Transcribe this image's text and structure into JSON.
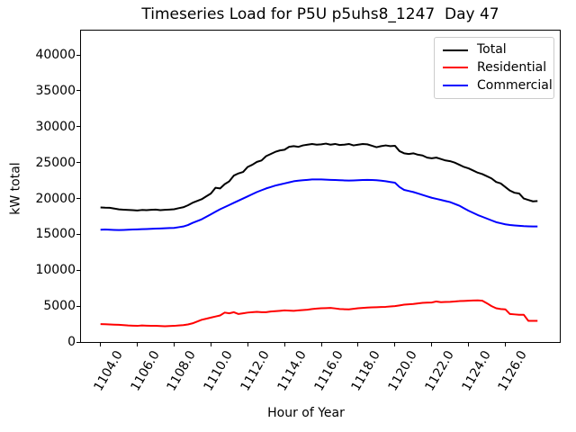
{
  "figure": {
    "title": "Timeseries Load for P5U p5uhs8_1247  Day 47"
  },
  "chart_data": {
    "type": "line",
    "title": "Timeseries Load for P5U p5uhs8_1247  Day 47",
    "xlabel": "Hour of Year",
    "ylabel": "kW total",
    "xlim": [
      1102.94,
      1128.96
    ],
    "ylim": [
      0,
      43400
    ],
    "grid": false,
    "legend_position": "upper right",
    "xticks": [
      1104,
      1106,
      1108,
      1110,
      1112,
      1114,
      1116,
      1118,
      1120,
      1122,
      1124,
      1126
    ],
    "xtick_labels": [
      "1104.0",
      "1106.0",
      "1108.0",
      "1110.0",
      "1112.0",
      "1114.0",
      "1116.0",
      "1118.0",
      "1120.0",
      "1122.0",
      "1124.0",
      "1126.0"
    ],
    "yticks": [
      0,
      5000,
      10000,
      15000,
      20000,
      25000,
      30000,
      35000,
      40000
    ],
    "ytick_labels": [
      "0",
      "5000",
      "10000",
      "15000",
      "20000",
      "25000",
      "30000",
      "35000",
      "40000"
    ],
    "x": [
      1104.0,
      1104.25,
      1104.5,
      1104.75,
      1105.0,
      1105.25,
      1105.5,
      1105.75,
      1106.0,
      1106.25,
      1106.5,
      1106.75,
      1107.0,
      1107.25,
      1107.5,
      1107.75,
      1108.0,
      1108.25,
      1108.5,
      1108.75,
      1109.0,
      1109.25,
      1109.5,
      1109.75,
      1110.0,
      1110.25,
      1110.5,
      1110.75,
      1111.0,
      1111.25,
      1111.5,
      1111.75,
      1112.0,
      1112.25,
      1112.5,
      1112.75,
      1113.0,
      1113.25,
      1113.5,
      1113.75,
      1114.0,
      1114.25,
      1114.5,
      1114.75,
      1115.0,
      1115.25,
      1115.5,
      1115.75,
      1116.0,
      1116.25,
      1116.5,
      1116.75,
      1117.0,
      1117.25,
      1117.5,
      1117.75,
      1118.0,
      1118.25,
      1118.5,
      1118.75,
      1119.0,
      1119.25,
      1119.5,
      1119.75,
      1120.0,
      1120.25,
      1120.5,
      1120.75,
      1121.0,
      1121.25,
      1121.5,
      1121.75,
      1122.0,
      1122.25,
      1122.5,
      1122.75,
      1123.0,
      1123.25,
      1123.5,
      1123.75,
      1124.0,
      1124.25,
      1124.5,
      1124.75,
      1125.0,
      1125.25,
      1125.5,
      1125.75,
      1126.0,
      1126.25,
      1126.5,
      1126.75,
      1127.0,
      1127.25,
      1127.5,
      1127.75
    ],
    "series": [
      {
        "name": "Total",
        "color": "#000000",
        "values": [
          18760,
          18720,
          18700,
          18600,
          18480,
          18440,
          18400,
          18370,
          18330,
          18400,
          18370,
          18420,
          18450,
          18380,
          18430,
          18460,
          18500,
          18650,
          18780,
          19050,
          19400,
          19650,
          19900,
          20300,
          20700,
          21500,
          21400,
          22000,
          22400,
          23200,
          23500,
          23700,
          24400,
          24700,
          25100,
          25300,
          25900,
          26200,
          26500,
          26700,
          26800,
          27200,
          27300,
          27200,
          27400,
          27500,
          27600,
          27500,
          27550,
          27650,
          27500,
          27600,
          27450,
          27500,
          27600,
          27400,
          27500,
          27600,
          27550,
          27350,
          27150,
          27300,
          27400,
          27300,
          27350,
          26600,
          26300,
          26200,
          26300,
          26100,
          26000,
          25700,
          25600,
          25700,
          25500,
          25300,
          25200,
          25000,
          24700,
          24400,
          24200,
          23900,
          23600,
          23400,
          23100,
          22800,
          22300,
          22100,
          21600,
          21100,
          20800,
          20700,
          20000,
          19800,
          19600,
          19650
        ]
      },
      {
        "name": "Residential",
        "color": "#ff0000",
        "values": [
          2500,
          2480,
          2450,
          2420,
          2400,
          2350,
          2300,
          2280,
          2250,
          2300,
          2280,
          2260,
          2250,
          2220,
          2200,
          2230,
          2250,
          2300,
          2350,
          2450,
          2600,
          2850,
          3100,
          3250,
          3400,
          3550,
          3700,
          4100,
          4000,
          4150,
          3900,
          4000,
          4100,
          4150,
          4200,
          4150,
          4150,
          4250,
          4300,
          4350,
          4400,
          4380,
          4350,
          4400,
          4450,
          4500,
          4600,
          4650,
          4700,
          4720,
          4750,
          4680,
          4600,
          4570,
          4550,
          4620,
          4700,
          4750,
          4800,
          4830,
          4850,
          4870,
          4900,
          4950,
          5000,
          5100,
          5200,
          5250,
          5300,
          5380,
          5450,
          5480,
          5500,
          5650,
          5550,
          5580,
          5600,
          5650,
          5700,
          5720,
          5750,
          5780,
          5800,
          5750,
          5400,
          5000,
          4700,
          4600,
          4550,
          3900,
          3850,
          3800,
          3800,
          2950,
          2950,
          2950
        ]
      },
      {
        "name": "Commercial",
        "color": "#0000ff",
        "values": [
          15650,
          15680,
          15650,
          15620,
          15600,
          15620,
          15650,
          15680,
          15700,
          15720,
          15750,
          15780,
          15800,
          15820,
          15850,
          15880,
          15900,
          16000,
          16100,
          16300,
          16600,
          16850,
          17100,
          17450,
          17800,
          18150,
          18500,
          18800,
          19100,
          19400,
          19700,
          20000,
          20300,
          20600,
          20900,
          21150,
          21400,
          21600,
          21800,
          21950,
          22100,
          22250,
          22400,
          22480,
          22550,
          22600,
          22650,
          22650,
          22650,
          22630,
          22600,
          22580,
          22550,
          22520,
          22500,
          22520,
          22550,
          22580,
          22600,
          22580,
          22550,
          22480,
          22400,
          22300,
          22200,
          21600,
          21200,
          21050,
          20900,
          20700,
          20500,
          20300,
          20100,
          19950,
          19800,
          19650,
          19500,
          19250,
          19000,
          18650,
          18300,
          18000,
          17700,
          17450,
          17200,
          16950,
          16700,
          16550,
          16400,
          16300,
          16250,
          16200,
          16150,
          16120,
          16100,
          16100
        ]
      }
    ]
  }
}
